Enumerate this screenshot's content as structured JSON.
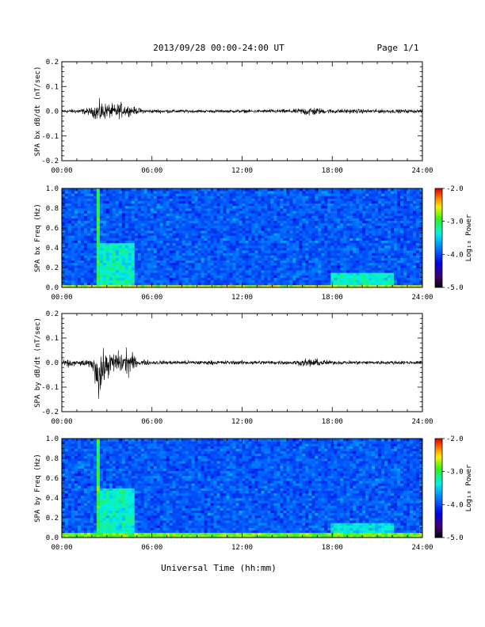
{
  "header": {
    "date_range": "2013/09/28  00:00-24:00 UT",
    "page": "Page 1/1"
  },
  "xlabel": "Universal Time (hh:mm)",
  "chart_data": [
    {
      "type": "line",
      "ylabel": "SPA bx dB/dt (nT/sec)",
      "xlim": [
        0,
        24
      ],
      "ylim": [
        -0.2,
        0.2
      ],
      "x_ticks": [
        "00:00",
        "06:00",
        "12:00",
        "18:00",
        "24:00"
      ],
      "y_ticks": [
        "-0.2",
        "-0.1",
        "0.0",
        "0.1",
        "0.2"
      ],
      "y_tick_values": [
        -0.2,
        -0.1,
        0.0,
        0.1,
        0.2
      ],
      "envelope": [
        {
          "hour": 0.0,
          "upper": 0.012,
          "lower": -0.012
        },
        {
          "hour": 1.0,
          "upper": 0.012,
          "lower": -0.012
        },
        {
          "hour": 2.0,
          "upper": 0.022,
          "lower": -0.025
        },
        {
          "hour": 2.5,
          "upper": 0.06,
          "lower": -0.07
        },
        {
          "hour": 3.0,
          "upper": 0.045,
          "lower": -0.04
        },
        {
          "hour": 3.5,
          "upper": 0.04,
          "lower": -0.045
        },
        {
          "hour": 4.0,
          "upper": 0.05,
          "lower": -0.04
        },
        {
          "hour": 4.5,
          "upper": 0.03,
          "lower": -0.025
        },
        {
          "hour": 5.5,
          "upper": 0.012,
          "lower": -0.012
        },
        {
          "hour": 10.0,
          "upper": 0.008,
          "lower": -0.008
        },
        {
          "hour": 15.5,
          "upper": 0.012,
          "lower": -0.012
        },
        {
          "hour": 16.5,
          "upper": 0.028,
          "lower": -0.03
        },
        {
          "hour": 17.5,
          "upper": 0.014,
          "lower": -0.014
        },
        {
          "hour": 24.0,
          "upper": 0.01,
          "lower": -0.01
        }
      ]
    },
    {
      "type": "heatmap",
      "ylabel": "SPA bx Freq (Hz)",
      "xlim": [
        0,
        24
      ],
      "ylim": [
        0,
        1.0
      ],
      "x_ticks": [
        "00:00",
        "06:00",
        "12:00",
        "18:00",
        "24:00"
      ],
      "y_ticks": [
        "0.0",
        "0.2",
        "0.4",
        "0.6",
        "0.8",
        "1.0"
      ],
      "y_tick_values": [
        0.0,
        0.2,
        0.4,
        0.6,
        0.8,
        1.0
      ],
      "colorbar": {
        "label": "Log₁₀ Power",
        "range": [
          -5.0,
          -2.0
        ],
        "ticks": [
          "-2.0",
          "-3.0",
          "-4.0",
          "-5.0"
        ],
        "tick_values": [
          -2.0,
          -3.0,
          -4.0,
          -5.0
        ]
      },
      "background_log_power": -3.9,
      "features": [
        {
          "hour_start": 2.3,
          "hour_end": 2.5,
          "freq_max": 1.0,
          "log_power": -3.0
        },
        {
          "hour_start": 2.3,
          "hour_end": 4.8,
          "freq_max": 0.45,
          "log_power": -3.3
        },
        {
          "hour_start": 0.0,
          "hour_end": 24.0,
          "freq_max": 0.03,
          "log_power": -2.6
        },
        {
          "hour_start": 18.0,
          "hour_end": 22.0,
          "freq_max": 0.15,
          "log_power": -3.3
        }
      ]
    },
    {
      "type": "line",
      "ylabel": "SPA by dB/dt (nT/sec)",
      "xlim": [
        0,
        24
      ],
      "ylim": [
        -0.2,
        0.2
      ],
      "x_ticks": [
        "00:00",
        "06:00",
        "12:00",
        "18:00",
        "24:00"
      ],
      "y_ticks": [
        "-0.2",
        "-0.1",
        "0.0",
        "0.1",
        "0.2"
      ],
      "y_tick_values": [
        -0.2,
        -0.1,
        0.0,
        0.1,
        0.2
      ],
      "envelope": [
        {
          "hour": 0.0,
          "upper": 0.012,
          "lower": -0.015
        },
        {
          "hour": 0.5,
          "upper": 0.02,
          "lower": -0.03
        },
        {
          "hour": 1.0,
          "upper": 0.012,
          "lower": -0.015
        },
        {
          "hour": 2.0,
          "upper": 0.02,
          "lower": -0.03
        },
        {
          "hour": 2.5,
          "upper": 0.1,
          "lower": -0.2
        },
        {
          "hour": 3.0,
          "upper": 0.06,
          "lower": -0.08
        },
        {
          "hour": 3.5,
          "upper": 0.06,
          "lower": -0.06
        },
        {
          "hour": 4.5,
          "upper": 0.08,
          "lower": -0.08
        },
        {
          "hour": 5.0,
          "upper": 0.02,
          "lower": -0.02
        },
        {
          "hour": 6.0,
          "upper": 0.012,
          "lower": -0.012
        },
        {
          "hour": 15.5,
          "upper": 0.012,
          "lower": -0.012
        },
        {
          "hour": 16.5,
          "upper": 0.025,
          "lower": -0.028
        },
        {
          "hour": 18.0,
          "upper": 0.012,
          "lower": -0.012
        },
        {
          "hour": 24.0,
          "upper": 0.01,
          "lower": -0.01
        }
      ]
    },
    {
      "type": "heatmap",
      "ylabel": "SPA by Freq (Hz)",
      "xlim": [
        0,
        24
      ],
      "ylim": [
        0,
        1.0
      ],
      "x_ticks": [
        "00:00",
        "06:00",
        "12:00",
        "18:00",
        "24:00"
      ],
      "y_ticks": [
        "0.0",
        "0.2",
        "0.4",
        "0.6",
        "0.8",
        "1.0"
      ],
      "y_tick_values": [
        0.0,
        0.2,
        0.4,
        0.6,
        0.8,
        1.0
      ],
      "colorbar": {
        "label": "Log₁₀ Power",
        "range": [
          -5.0,
          -2.0
        ],
        "ticks": [
          "-2.0",
          "-3.0",
          "-4.0",
          "-5.0"
        ],
        "tick_values": [
          -2.0,
          -3.0,
          -4.0,
          -5.0
        ]
      },
      "background_log_power": -3.9,
      "features": [
        {
          "hour_start": 2.3,
          "hour_end": 2.5,
          "freq_max": 1.0,
          "log_power": -3.0
        },
        {
          "hour_start": 2.3,
          "hour_end": 4.8,
          "freq_max": 0.5,
          "log_power": -3.3
        },
        {
          "hour_start": 0.0,
          "hour_end": 24.0,
          "freq_max": 0.05,
          "log_power": -2.8
        },
        {
          "hour_start": 18.0,
          "hour_end": 22.0,
          "freq_max": 0.15,
          "log_power": -3.4
        }
      ]
    }
  ]
}
